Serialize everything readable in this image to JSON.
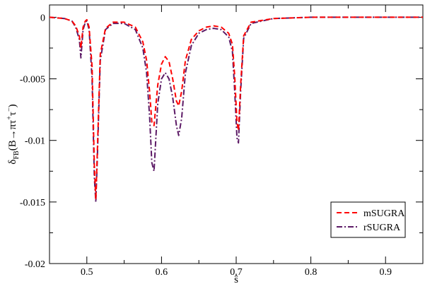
{
  "chart_data": {
    "type": "line",
    "xlabel": "ŝ",
    "ylabel": "δFB(B→πτ+τ−)",
    "ylabel_parts": {
      "delta": "δ",
      "sub": "FB",
      "mid": "(B→πτ",
      "plus": "+",
      "tau": "τ",
      "minus": "−",
      "close": ")"
    },
    "xlim": [
      0.45,
      0.95
    ],
    "ylim": [
      -0.02,
      0.001
    ],
    "xticks": [
      0.5,
      0.6,
      0.7,
      0.8,
      0.9
    ],
    "xtick_labels": [
      "0.5",
      "0.6",
      "0.7",
      "0.8",
      "0.9"
    ],
    "yticks": [
      0,
      -0.005,
      -0.01,
      -0.015,
      -0.02
    ],
    "ytick_labels": [
      "0",
      "-0.005",
      "-0.01",
      "-0.015",
      "-0.02"
    ],
    "grid": false,
    "legend": "bottom-right",
    "series": [
      {
        "name": "mSUGRA",
        "color": "#ff0000",
        "style": "dashed",
        "x": [
          0.45,
          0.47,
          0.48,
          0.485,
          0.49,
          0.492,
          0.495,
          0.498,
          0.5,
          0.503,
          0.507,
          0.51,
          0.512,
          0.514,
          0.518,
          0.525,
          0.535,
          0.55,
          0.565,
          0.575,
          0.58,
          0.584,
          0.587,
          0.59,
          0.595,
          0.6,
          0.605,
          0.61,
          0.615,
          0.62,
          0.623,
          0.627,
          0.632,
          0.64,
          0.65,
          0.66,
          0.67,
          0.68,
          0.69,
          0.695,
          0.698,
          0.701,
          0.703,
          0.706,
          0.71,
          0.72,
          0.75,
          0.8,
          0.85,
          0.9,
          0.95
        ],
        "y": [
          0,
          -0.0001,
          -0.0003,
          -0.0007,
          -0.0015,
          -0.0025,
          -0.0008,
          -0.0003,
          -0.0002,
          -0.0008,
          -0.004,
          -0.012,
          -0.0148,
          -0.011,
          -0.003,
          -0.0009,
          -0.0004,
          -0.0004,
          -0.0008,
          -0.002,
          -0.0035,
          -0.006,
          -0.0085,
          -0.0088,
          -0.0055,
          -0.0038,
          -0.0032,
          -0.0036,
          -0.005,
          -0.0068,
          -0.0072,
          -0.006,
          -0.0035,
          -0.0018,
          -0.0011,
          -0.0008,
          -0.0007,
          -0.0008,
          -0.0013,
          -0.0022,
          -0.0048,
          -0.0085,
          -0.0092,
          -0.0055,
          -0.0015,
          -0.0004,
          -0.0001,
          0,
          0,
          0,
          0
        ]
      },
      {
        "name": "rSUGRA",
        "color": "#5c1a66",
        "style": "dash-dot",
        "x": [
          0.45,
          0.47,
          0.48,
          0.485,
          0.49,
          0.492,
          0.495,
          0.498,
          0.5,
          0.503,
          0.507,
          0.51,
          0.512,
          0.514,
          0.518,
          0.525,
          0.535,
          0.55,
          0.565,
          0.575,
          0.58,
          0.584,
          0.587,
          0.59,
          0.595,
          0.6,
          0.605,
          0.61,
          0.615,
          0.62,
          0.623,
          0.627,
          0.632,
          0.64,
          0.65,
          0.66,
          0.67,
          0.68,
          0.69,
          0.695,
          0.698,
          0.701,
          0.703,
          0.706,
          0.71,
          0.72,
          0.75,
          0.8,
          0.85,
          0.9,
          0.95
        ],
        "y": [
          0,
          -0.0001,
          -0.0003,
          -0.0008,
          -0.0018,
          -0.0033,
          -0.001,
          -0.0004,
          -0.0003,
          -0.001,
          -0.005,
          -0.013,
          -0.015,
          -0.0115,
          -0.0035,
          -0.001,
          -0.0005,
          -0.0005,
          -0.001,
          -0.0025,
          -0.0045,
          -0.008,
          -0.0118,
          -0.0125,
          -0.007,
          -0.005,
          -0.0045,
          -0.005,
          -0.0065,
          -0.0088,
          -0.0096,
          -0.0082,
          -0.0045,
          -0.0023,
          -0.0013,
          -0.001,
          -0.0009,
          -0.001,
          -0.0016,
          -0.0028,
          -0.006,
          -0.0098,
          -0.0102,
          -0.006,
          -0.0017,
          -0.0005,
          -0.0001,
          0,
          0,
          0,
          0
        ]
      }
    ]
  }
}
